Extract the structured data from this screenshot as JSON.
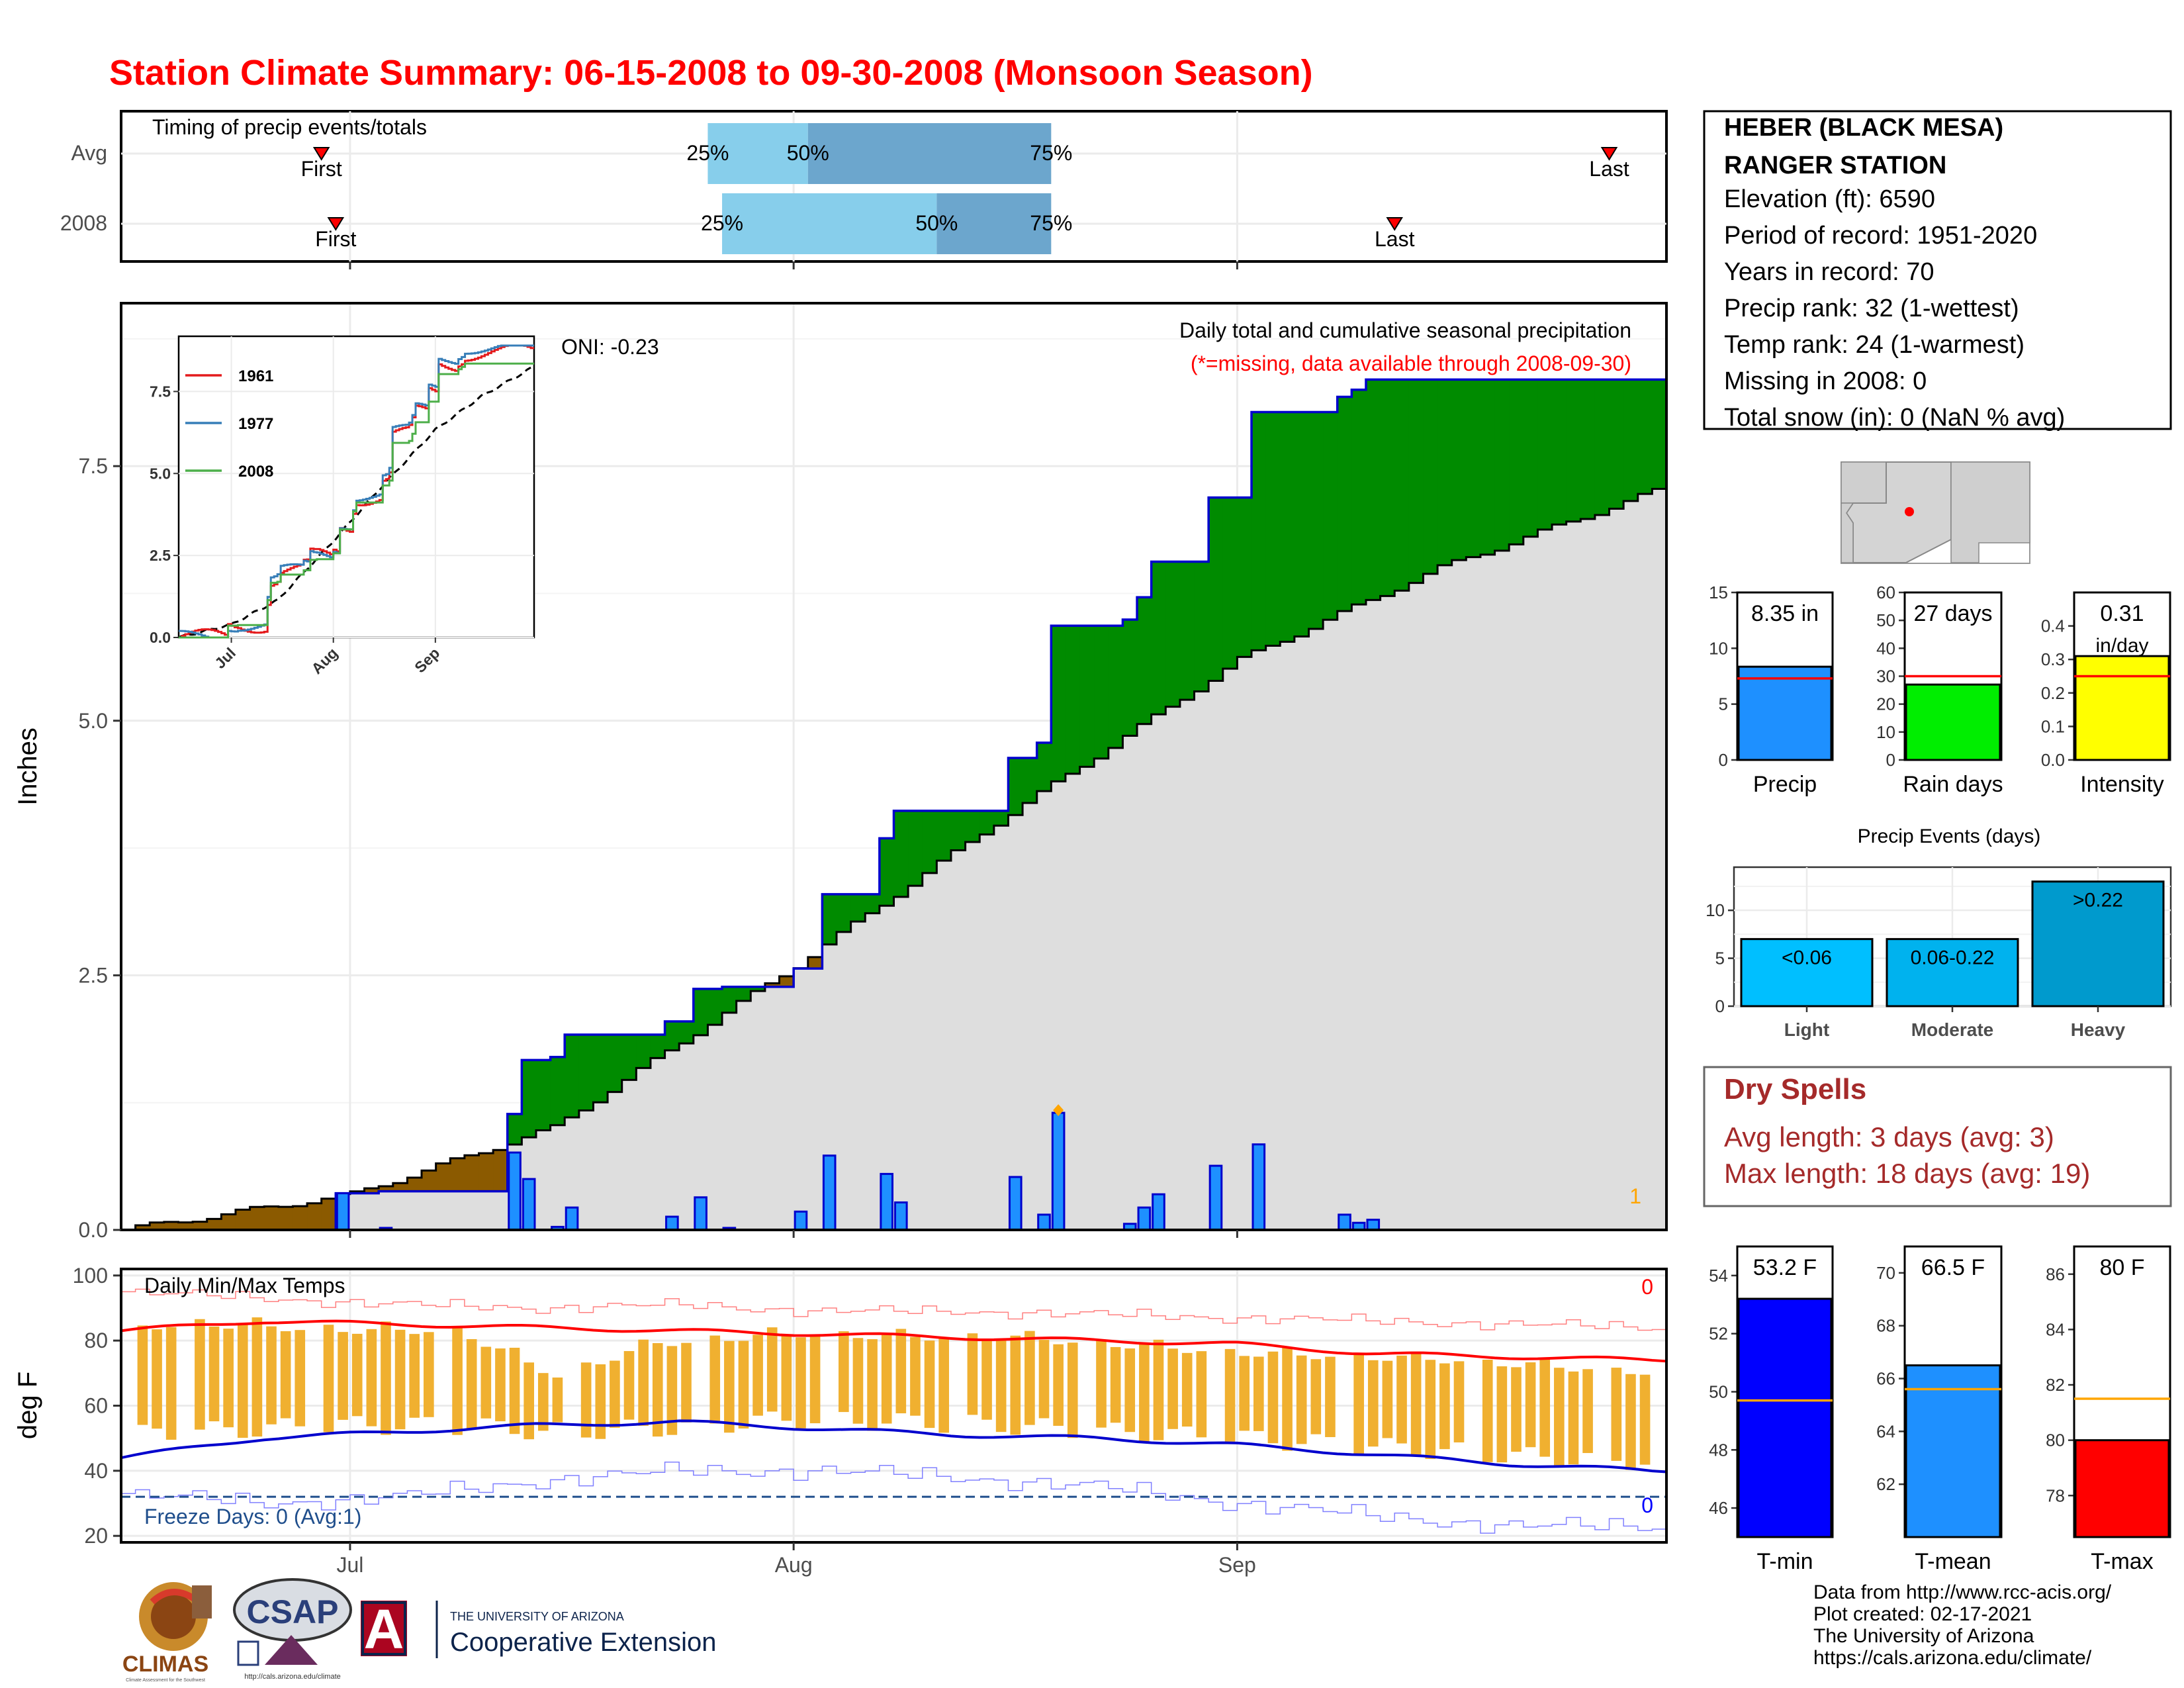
{
  "title": "Station Climate Summary: 06-15-2008 to 09-30-2008 (Monsoon Season)",
  "timing": {
    "label": "Timing of precip events/totals",
    "rows": [
      {
        "name": "Avg",
        "first": "First",
        "last": "Last",
        "p25": "25%",
        "p50": "50%",
        "p75": "75%",
        "first_date": "2008-06-29",
        "last_date": "2008-09-27",
        "q25_date": "2008-07-26",
        "q50_date": "2008-08-02",
        "q75_date": "2008-08-19"
      },
      {
        "name": "2008",
        "first": "First",
        "last": "Last",
        "p25": "25%",
        "p50": "50%",
        "p75": "75%",
        "first_date": "2008-06-30",
        "last_date": "2008-09-12",
        "q25_date": "2008-07-27",
        "q50_date": "2008-08-11",
        "q75_date": "2008-08-19"
      }
    ]
  },
  "main_chart": {
    "ylabel": "Inches",
    "yticks": [
      "0.0",
      "2.5",
      "5.0",
      "7.5"
    ],
    "oni": "ONI: -0.23",
    "subtitle": "Daily total and cumulative seasonal precipitation",
    "missing_note": "(*=missing, data available through 2008-09-30)",
    "missing_count": "1",
    "inset": {
      "yticks": [
        "0.0",
        "2.5",
        "5.0",
        "7.5"
      ],
      "xticks": [
        "Jul",
        "Aug",
        "Sep"
      ],
      "legend": [
        {
          "name": "1961",
          "color": "#e41a1c"
        },
        {
          "name": "1977",
          "color": "#377eb8"
        },
        {
          "name": "2008",
          "color": "#4daf4a"
        }
      ]
    }
  },
  "temp_chart": {
    "title": "Daily Min/Max Temps",
    "ylabel": "deg F",
    "yticks": [
      "20",
      "40",
      "60",
      "80",
      "100"
    ],
    "xticks": [
      "Jul",
      "Aug",
      "Sep"
    ],
    "freeze": "Freeze Days: 0 (Avg:1)",
    "hot_count": "0",
    "cold_count": "0"
  },
  "station": {
    "name_line1": "HEBER (BLACK MESA)",
    "name_line2": "RANGER STATION",
    "lines": [
      "Elevation (ft): 6590",
      "Period of record: 1951-2020",
      "Years in record: 70",
      "Precip rank: 32 (1-wettest)",
      "Temp rank: 24 (1-warmest)",
      "Missing in 2008: 0",
      "Total snow (in): 0 (NaN % avg)"
    ]
  },
  "precip_bars": [
    {
      "label": "Precip",
      "value_text": "8.35 in",
      "value": 8.35,
      "avg": 7.3,
      "max": 15,
      "ticks": [
        "0",
        "5",
        "10",
        "15"
      ],
      "color": "#1e90ff"
    },
    {
      "label": "Rain days",
      "value_text": "27 days",
      "value": 27,
      "avg": 30,
      "max": 60,
      "ticks": [
        "0",
        "10",
        "20",
        "30",
        "40",
        "50",
        "60"
      ],
      "color": "#00ee00"
    },
    {
      "label": "Intensity",
      "value_text": "0.31",
      "value_text2": "in/day",
      "value": 0.31,
      "avg": 0.25,
      "max": 0.5,
      "ticks": [
        "0.0",
        "0.1",
        "0.2",
        "0.3",
        "0.4"
      ],
      "color": "#ffff00"
    }
  ],
  "events": {
    "title": "Precip Events (days)",
    "ticks": [
      "0",
      "5",
      "10"
    ],
    "bars": [
      {
        "label": "Light",
        "text": "<0.06",
        "value": 7,
        "color": "#00bfff"
      },
      {
        "label": "Moderate",
        "text": "0.06-0.22",
        "value": 7,
        "color": "#00b2ee"
      },
      {
        "label": "Heavy",
        "text": ">0.22",
        "value": 13,
        "color": "#009acd"
      }
    ]
  },
  "dry_spells": {
    "title": "Dry Spells",
    "avg": "Avg length: 3 days (avg: 3)",
    "max": "Max length: 18 days (avg: 19)"
  },
  "temp_bars": [
    {
      "label": "T-min",
      "value_text": "53.2 F",
      "value": 53.2,
      "avg": 49.7,
      "min": 45,
      "max": 55,
      "ticks": [
        "46",
        "48",
        "50",
        "52",
        "54"
      ],
      "color": "#0000ff"
    },
    {
      "label": "T-mean",
      "value_text": "66.5 F",
      "value": 66.5,
      "avg": 65.6,
      "min": 60,
      "max": 71,
      "ticks": [
        "62",
        "64",
        "66",
        "68",
        "70"
      ],
      "color": "#1e90ff"
    },
    {
      "label": "T-max",
      "value_text": "80 F",
      "value": 80,
      "avg": 81.5,
      "min": 76.5,
      "max": 87,
      "ticks": [
        "78",
        "80",
        "82",
        "84",
        "86"
      ],
      "color": "#ff0000"
    }
  ],
  "credits": [
    "Data from http://www.rcc-acis.org/",
    "Plot created: 02-17-2021",
    "The University of Arizona",
    "https://cals.arizona.edu/climate/"
  ],
  "logos": {
    "climas": "CLIMAS",
    "climas_sub": "Climate Assessment for the Southwest",
    "csap": "CSAP",
    "csap_url": "http://cals.arizona.edu/climate",
    "ua_letter": "A",
    "ua_line1": "THE UNIVERSITY OF ARIZONA",
    "ua_line2": "Cooperative Extension"
  },
  "chart_data": {
    "type": "area",
    "start": "2008-06-15",
    "end": "2008-09-30",
    "ylim": [
      0,
      9.1
    ],
    "daily_precip": [
      {
        "date": "2008-06-30",
        "value": 0.36
      },
      {
        "date": "2008-07-03",
        "value": 0.02
      },
      {
        "date": "2008-07-12",
        "value": 0.76
      },
      {
        "date": "2008-07-13",
        "value": 0.03
      },
      {
        "date": "2008-07-13",
        "value": 0.5
      },
      {
        "date": "2008-07-15",
        "value": 0.03
      },
      {
        "date": "2008-07-16",
        "value": 0.22
      },
      {
        "date": "2008-07-23",
        "value": 0.13
      },
      {
        "date": "2008-07-25",
        "value": 0.32
      },
      {
        "date": "2008-07-27",
        "value": 0.02
      },
      {
        "date": "2008-08-01",
        "value": 0.18
      },
      {
        "date": "2008-08 01",
        "value": 0
      },
      {
        "date": "2008-08-03",
        "value": 0.73
      },
      {
        "date": "2008-08-07",
        "value": 0.55
      },
      {
        "date": "2008-08-08",
        "value": 0.27
      },
      {
        "date": "2008-08-16",
        "value": 0.52
      },
      {
        "date": "2008-08-18",
        "value": 0.15
      },
      {
        "date": "2008-08-19",
        "value": 1.15
      },
      {
        "date": "2008-08-24",
        "value": 0.06
      },
      {
        "date": "2008-08-25",
        "value": 0.22
      },
      {
        "date": "2008-08-26",
        "value": 0.35
      },
      {
        "date": "2008-08-30",
        "value": 0.63
      },
      {
        "date": "2008-09-02",
        "value": 0.84
      },
      {
        "date": "2008-09-08",
        "value": 0.15
      },
      {
        "date": "2008-09-09",
        "value": 0.07
      },
      {
        "date": "2008-09-10",
        "value": 0.1
      }
    ],
    "avg_cumulative": [
      {
        "date": "2008-06-15",
        "value": 0.0
      },
      {
        "date": "2008-07-01",
        "value": 0.35
      },
      {
        "date": "2008-07-15",
        "value": 1.0
      },
      {
        "date": "2008-08-01",
        "value": 2.6
      },
      {
        "date": "2008-08-15",
        "value": 4.0
      },
      {
        "date": "2008-09-01",
        "value": 5.6
      },
      {
        "date": "2008-09-15",
        "value": 6.5
      },
      {
        "date": "2008-09-30",
        "value": 7.25
      }
    ],
    "series_2008_cumulative_final": 8.35,
    "temp": {
      "ylim": [
        18,
        102
      ],
      "avg_max": [
        83,
        86,
        85,
        84,
        83,
        82,
        81,
        80,
        79,
        76,
        75,
        74
      ],
      "avg_min": [
        44,
        50,
        52,
        54,
        55,
        53,
        51,
        50,
        48,
        45,
        42,
        40
      ],
      "record_max": [
        95,
        93,
        91,
        90,
        91,
        89,
        89,
        88,
        87,
        86,
        85,
        84
      ],
      "record_min": [
        33,
        30,
        32,
        37,
        40,
        40,
        38,
        35,
        30,
        26,
        23,
        23
      ],
      "freeze_line": 32,
      "daily": [
        {
          "date": "2008-06-15",
          "min": 51,
          "max": 87
        },
        {
          "date": "2008-06-20",
          "min": 52,
          "max": 88
        },
        {
          "date": "2008-06-25",
          "min": 53,
          "max": 87
        },
        {
          "date": "2008-07-01",
          "min": 54,
          "max": 86
        },
        {
          "date": "2008-07-08",
          "min": 54,
          "max": 86
        },
        {
          "date": "2008-07-15",
          "min": 52,
          "max": 72
        },
        {
          "date": "2008-07-22",
          "min": 53,
          "max": 82
        },
        {
          "date": "2008-08-01",
          "min": 56,
          "max": 85
        },
        {
          "date": "2008-08-08",
          "min": 55,
          "max": 84
        },
        {
          "date": "2008-08-15",
          "min": 54,
          "max": 84
        },
        {
          "date": "2008-08-22",
          "min": 52,
          "max": 82
        },
        {
          "date": "2008-09-01",
          "min": 50,
          "max": 79
        },
        {
          "date": "2008-09-08",
          "min": 48,
          "max": 78
        },
        {
          "date": "2008-09-15",
          "min": 46,
          "max": 77
        },
        {
          "date": "2008-09-22",
          "min": 44,
          "max": 75
        },
        {
          "date": "2008-09-30",
          "min": 43,
          "max": 73
        }
      ]
    }
  }
}
